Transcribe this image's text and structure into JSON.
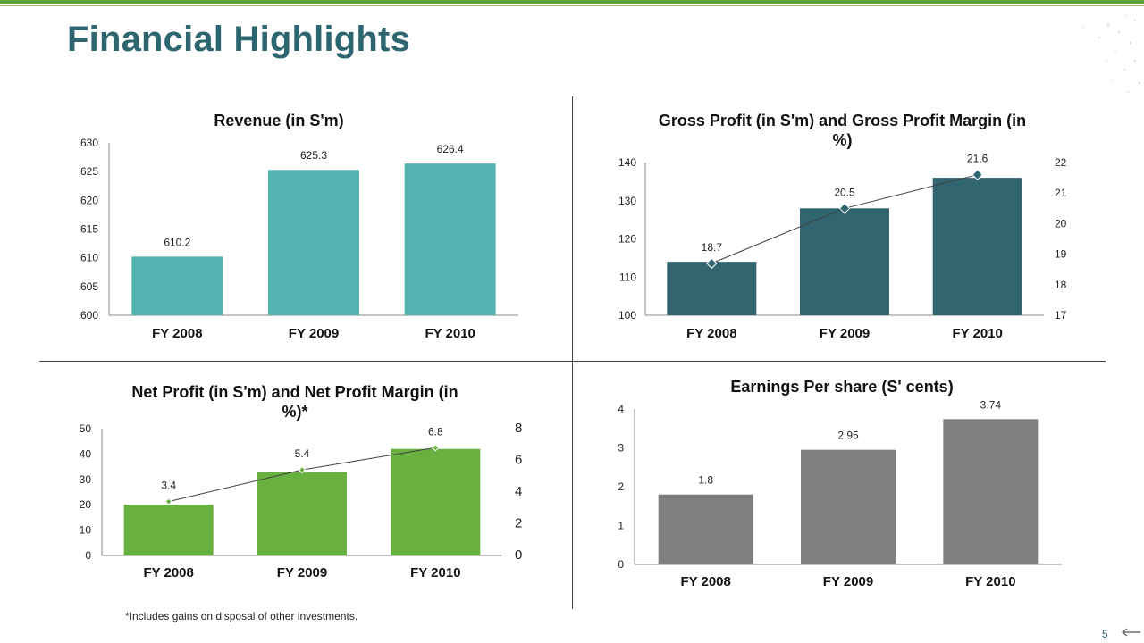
{
  "page": {
    "title": "Financial Highlights",
    "footnote": "*Includes gains on disposal of other investments.",
    "page_number": "5"
  },
  "colors": {
    "title": "#2e6670",
    "revenue_bar": "#52b3b1",
    "gross_bar": "#316670",
    "net_bar": "#68b141",
    "eps_bar": "#7f7f7f",
    "line": "#404040"
  },
  "chart_data": [
    {
      "id": "revenue",
      "type": "bar",
      "title": "Revenue (in S'm)",
      "categories": [
        "FY 2008",
        "FY 2009",
        "FY 2010"
      ],
      "values": [
        610.2,
        625.3,
        626.4
      ],
      "value_labels": [
        "610.2",
        "625.3",
        "626.4"
      ],
      "ylim": [
        600,
        630
      ],
      "yticks": [
        "600",
        "605",
        "610",
        "615",
        "620",
        "625",
        "630"
      ]
    },
    {
      "id": "gross",
      "type": "bar+line",
      "title": "Gross Profit (in S'm) and Gross Profit Margin (in %)",
      "categories": [
        "FY 2008",
        "FY 2009",
        "FY 2010"
      ],
      "series": [
        {
          "name": "Gross Profit",
          "kind": "bar",
          "axis": "left",
          "values": [
            114,
            128,
            136
          ]
        },
        {
          "name": "Gross Profit Margin",
          "kind": "line",
          "axis": "right",
          "values": [
            18.7,
            20.5,
            21.6
          ]
        }
      ],
      "line_labels": [
        "18.7",
        "20.5",
        "21.6"
      ],
      "ylim": [
        100,
        140
      ],
      "yticks": [
        "100",
        "110",
        "120",
        "130",
        "140"
      ],
      "y2lim": [
        17,
        22
      ],
      "y2ticks": [
        "17",
        "18",
        "19",
        "20",
        "21",
        "22"
      ]
    },
    {
      "id": "net",
      "type": "bar+line",
      "title": "Net Profit (in S'm) and Net Profit Margin (in %)*",
      "categories": [
        "FY 2008",
        "FY 2009",
        "FY 2010"
      ],
      "series": [
        {
          "name": "Net Profit",
          "kind": "bar",
          "axis": "left",
          "values": [
            20,
            33,
            42
          ]
        },
        {
          "name": "Net Profit Margin",
          "kind": "line",
          "axis": "right",
          "values": [
            3.4,
            5.4,
            6.8
          ]
        }
      ],
      "line_labels": [
        "3.4",
        "5.4",
        "6.8"
      ],
      "ylim": [
        0,
        50
      ],
      "yticks": [
        "0",
        "10",
        "20",
        "30",
        "40",
        "50"
      ],
      "y2lim": [
        0,
        8
      ],
      "y2ticks": [
        "0",
        "2",
        "4",
        "6",
        "8"
      ]
    },
    {
      "id": "eps",
      "type": "bar",
      "title": "Earnings Per share (S' cents)",
      "categories": [
        "FY 2008",
        "FY 2009",
        "FY 2010"
      ],
      "values": [
        1.8,
        2.95,
        3.74
      ],
      "value_labels": [
        "1.8",
        "2.95",
        "3.74"
      ],
      "ylim": [
        0,
        4
      ],
      "yticks": [
        "0",
        "1",
        "2",
        "3",
        "4"
      ]
    }
  ]
}
